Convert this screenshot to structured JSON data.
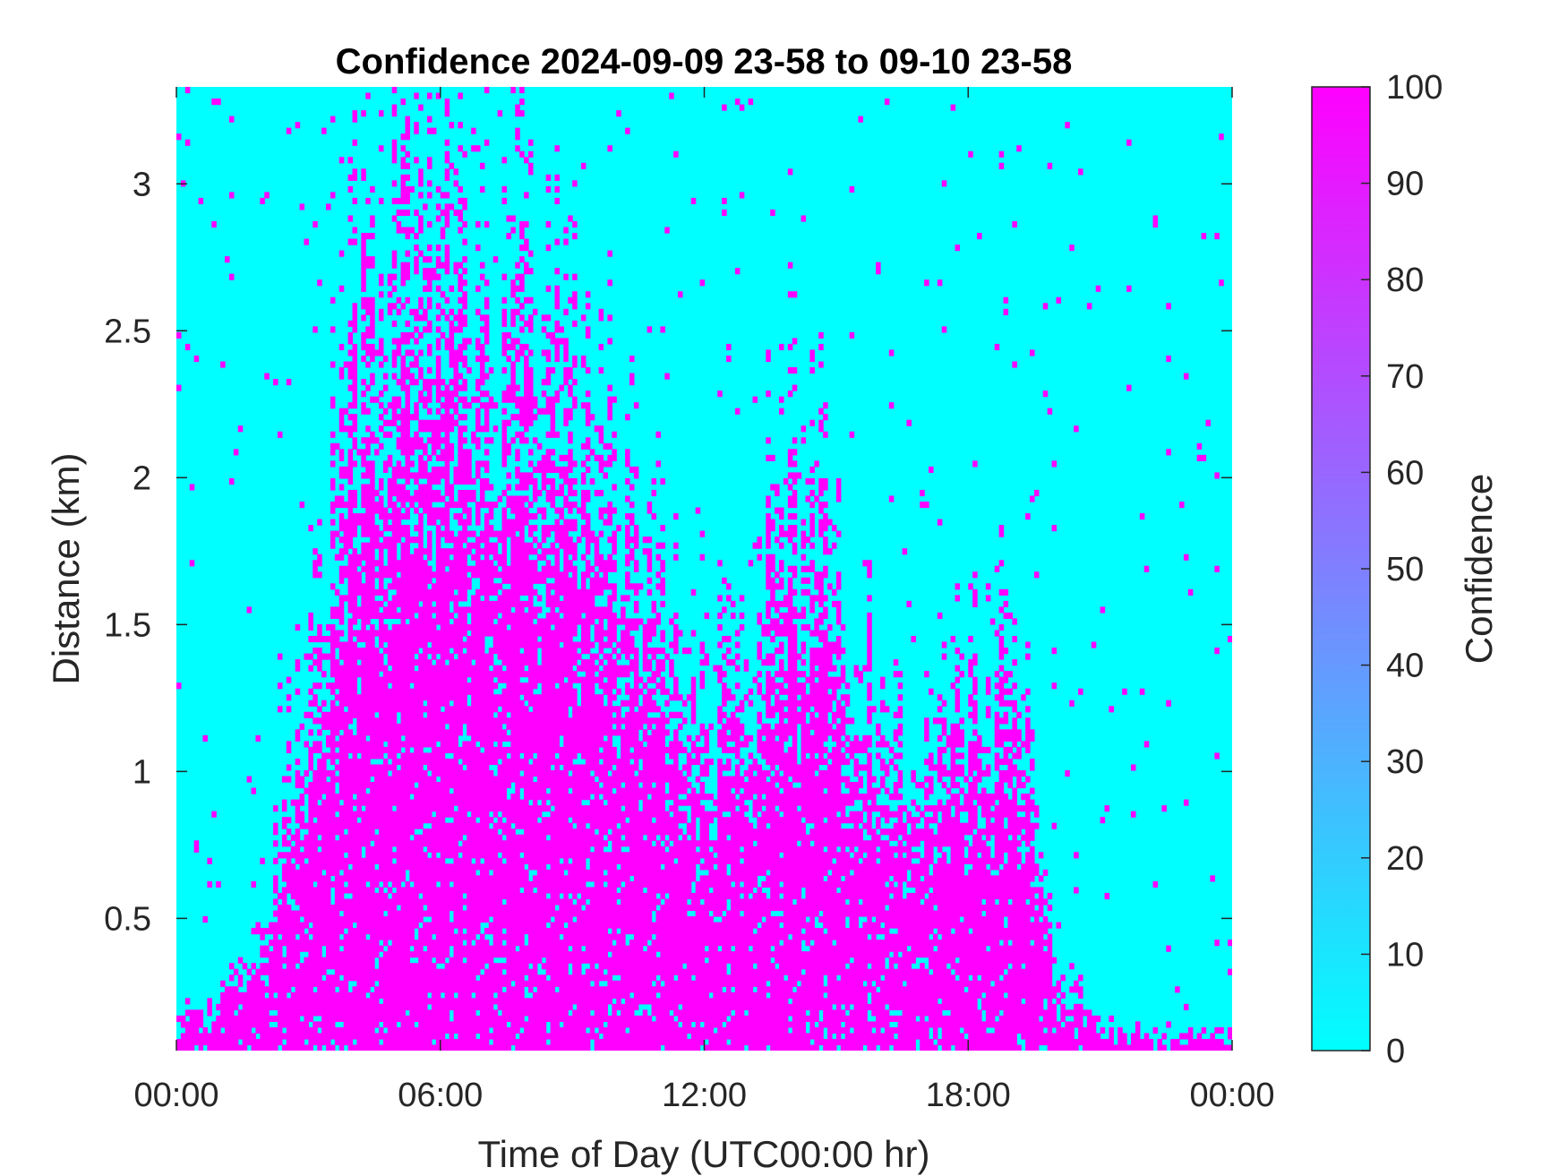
{
  "chart_data": {
    "type": "heatmap",
    "title": "Confidence 2024-09-09 23-58 to 09-10 23-58",
    "xlabel": "Time of Day (UTC00:00 hr)",
    "ylabel": "Distance (km)",
    "xlim": [
      0,
      24
    ],
    "ylim": [
      0.05,
      3.33
    ],
    "x_ticks": [
      0,
      6,
      12,
      18,
      24
    ],
    "x_tick_labels": [
      "00:00",
      "06:00",
      "12:00",
      "18:00",
      "00:00"
    ],
    "y_ticks": [
      0.5,
      1,
      1.5,
      2,
      2.5,
      3
    ],
    "y_tick_labels": [
      "0.5",
      "1",
      "1.5",
      "2",
      "2.5",
      "3"
    ],
    "colorbar": {
      "label": "Confidence",
      "range": [
        0,
        100
      ],
      "ticks": [
        0,
        10,
        20,
        30,
        40,
        50,
        60,
        70,
        80,
        90,
        100
      ],
      "tick_labels": [
        "0",
        "10",
        "20",
        "30",
        "40",
        "50",
        "60",
        "70",
        "80",
        "90",
        "100"
      ],
      "color_low": "#00FFFF",
      "color_high": "#FF00FF"
    },
    "grid": false,
    "approx_high_confidence_envelope_km": {
      "time_hr": [
        0,
        1,
        2,
        3,
        4,
        5,
        6,
        7,
        8,
        9,
        10,
        11,
        12,
        13,
        14,
        15,
        16,
        17,
        18,
        19,
        20,
        21,
        22,
        23,
        24
      ],
      "top_km": [
        0.15,
        0.2,
        0.4,
        1.2,
        2.2,
        2.6,
        2.9,
        2.4,
        2.3,
        2.0,
        1.8,
        1.5,
        1.2,
        1.3,
        1.9,
        1.6,
        1.1,
        1.0,
        1.2,
        1.4,
        0.3,
        0.15,
        0.1,
        0.1,
        0.1
      ]
    }
  }
}
